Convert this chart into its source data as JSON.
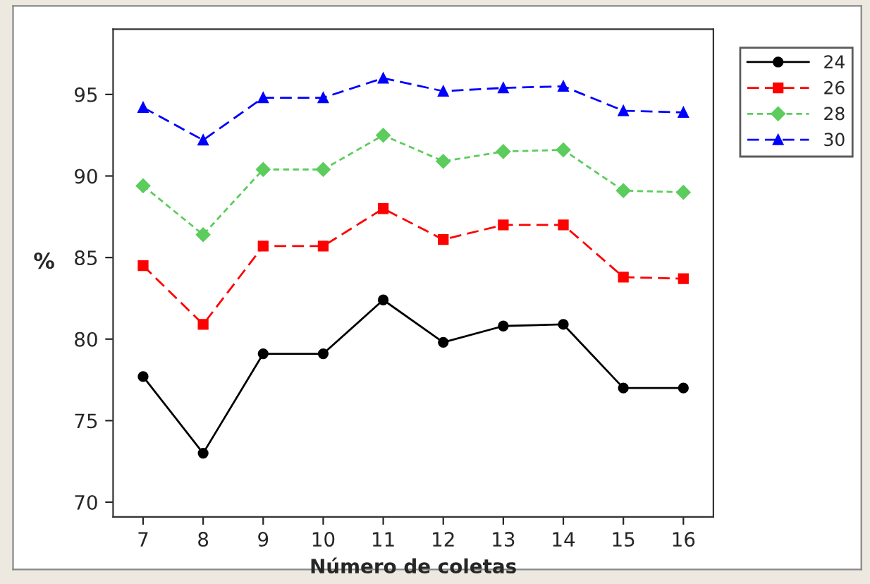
{
  "chart_data": {
    "type": "line",
    "xlabel": "Número de coletas",
    "ylabel": "%",
    "x": [
      7,
      8,
      9,
      10,
      11,
      12,
      13,
      14,
      15,
      16
    ],
    "xlim": [
      6.5,
      16.5
    ],
    "xticks": [
      7,
      8,
      9,
      10,
      11,
      12,
      13,
      14,
      15,
      16
    ],
    "ylim": [
      69.1,
      99
    ],
    "yticks": [
      70,
      75,
      80,
      85,
      90,
      95
    ],
    "grid": false,
    "legend": "right",
    "series": [
      {
        "name": "24",
        "color": "#000000",
        "marker": "circle",
        "line_style": "solid",
        "values": [
          77.7,
          73.0,
          79.1,
          79.1,
          82.4,
          79.8,
          80.8,
          80.9,
          77.0,
          77.0
        ]
      },
      {
        "name": "26",
        "color": "#ff0000",
        "marker": "square",
        "line_style": "dashed",
        "values": [
          84.5,
          80.9,
          85.7,
          85.7,
          88.0,
          86.1,
          87.0,
          87.0,
          83.8,
          83.7
        ]
      },
      {
        "name": "28",
        "color": "#5ccc5c",
        "marker": "diamond",
        "line_style": "dotted",
        "values": [
          89.4,
          86.4,
          90.4,
          90.4,
          92.5,
          90.9,
          91.5,
          91.6,
          89.1,
          89.0
        ]
      },
      {
        "name": "30",
        "color": "#0000ff",
        "marker": "triangle",
        "line_style": "dashed",
        "values": [
          94.2,
          92.2,
          94.8,
          94.8,
          96.0,
          95.2,
          95.4,
          95.5,
          94.0,
          93.9
        ]
      }
    ]
  }
}
